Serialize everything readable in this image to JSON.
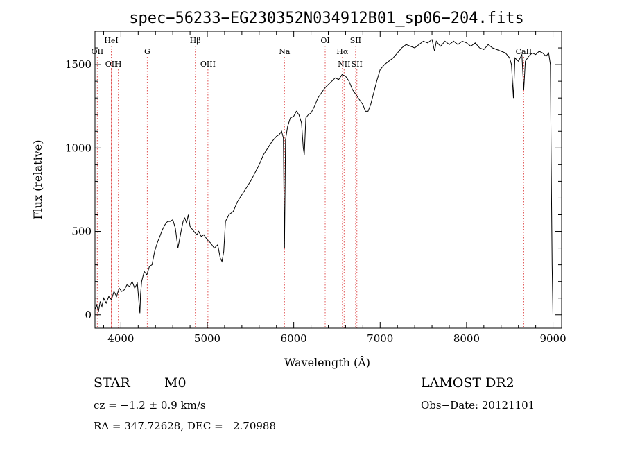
{
  "info": {
    "obj_class": "STAR",
    "subclass": "M0",
    "survey": "LAMOST DR2",
    "redshift": "cz = −1.2 ± 0.9 km/s",
    "obs_date": "Obs−Date: 20121101",
    "coords": "RA = 347.72628, DEC =   2.70988"
  },
  "chart_data": {
    "type": "line",
    "title": "spec−56233−EG230352N034912B01_sp06−204.fits",
    "xlabel": "Wavelength (Å)",
    "ylabel": "Flux (relative)",
    "xlim": [
      3700,
      9100
    ],
    "ylim": [
      -80,
      1700
    ],
    "x_ticks": [
      4000,
      5000,
      6000,
      7000,
      8000,
      9000
    ],
    "y_ticks": [
      0,
      500,
      1000,
      1500
    ],
    "x_minor_step": 200,
    "y_minor_step": 100,
    "line_color": "#000000",
    "marker_color": "#e05050",
    "spectral_lines": [
      {
        "label": "OII",
        "wave": 3727,
        "row": 2
      },
      {
        "label": "HeI",
        "wave": 3889,
        "row": 1
      },
      {
        "label": "OII",
        "wave": 3889,
        "row": 3
      },
      {
        "label": "H",
        "wave": 3970,
        "row": 3
      },
      {
        "label": "G",
        "wave": 4305,
        "row": 2
      },
      {
        "label": "Hβ",
        "wave": 4861,
        "row": 1
      },
      {
        "label": "OIII",
        "wave": 5007,
        "row": 3
      },
      {
        "label": "Na",
        "wave": 5893,
        "row": 2
      },
      {
        "label": "OI",
        "wave": 6364,
        "row": 1
      },
      {
        "label": "Hα",
        "wave": 6563,
        "row": 2
      },
      {
        "label": "NII",
        "wave": 6583,
        "row": 3
      },
      {
        "label": "SII",
        "wave": 6716,
        "row": 1
      },
      {
        "label": "SII",
        "wave": 6731,
        "row": 3
      },
      {
        "label": "CaII",
        "wave": 8662,
        "row": 2
      }
    ],
    "series": [
      {
        "x": [
          3700,
          3720,
          3740,
          3760,
          3780,
          3800,
          3830,
          3860,
          3890,
          3920,
          3950,
          3980,
          4010,
          4040,
          4070,
          4100,
          4130,
          4160,
          4190,
          4220,
          4227,
          4240,
          4270,
          4300,
          4330,
          4360,
          4390,
          4420,
          4450,
          4480,
          4510,
          4540,
          4570,
          4600,
          4630,
          4660,
          4700,
          4720,
          4740,
          4760,
          4780,
          4800,
          4830,
          4860,
          4880,
          4900,
          4930,
          4960,
          5000,
          5040,
          5080,
          5120,
          5150,
          5170,
          5190,
          5210,
          5250,
          5300,
          5350,
          5400,
          5450,
          5500,
          5550,
          5600,
          5650,
          5700,
          5750,
          5800,
          5830,
          5860,
          5880,
          5893,
          5905,
          5930,
          5960,
          6000,
          6030,
          6060,
          6090,
          6110,
          6122,
          6140,
          6170,
          6200,
          6240,
          6280,
          6320,
          6360,
          6400,
          6440,
          6480,
          6520,
          6560,
          6600,
          6640,
          6680,
          6720,
          6760,
          6800,
          6830,
          6860,
          6890,
          6920,
          6960,
          7000,
          7050,
          7100,
          7150,
          7200,
          7250,
          7300,
          7350,
          7400,
          7450,
          7500,
          7550,
          7600,
          7630,
          7650,
          7680,
          7700,
          7750,
          7800,
          7850,
          7900,
          7950,
          8000,
          8050,
          8100,
          8150,
          8200,
          8250,
          8300,
          8350,
          8400,
          8450,
          8498,
          8520,
          8542,
          8560,
          8600,
          8640,
          8662,
          8680,
          8720,
          8760,
          8800,
          8840,
          8880,
          8920,
          8950,
          8970,
          8980,
          8990,
          9000
        ],
        "y": [
          30,
          60,
          20,
          80,
          50,
          100,
          70,
          110,
          90,
          140,
          110,
          160,
          140,
          150,
          180,
          170,
          200,
          160,
          190,
          10,
          120,
          200,
          260,
          240,
          290,
          300,
          380,
          430,
          470,
          510,
          540,
          560,
          560,
          570,
          520,
          400,
          510,
          560,
          580,
          550,
          600,
          530,
          510,
          490,
          480,
          500,
          470,
          480,
          450,
          430,
          400,
          420,
          340,
          320,
          380,
          560,
          600,
          620,
          680,
          720,
          760,
          800,
          850,
          900,
          960,
          1000,
          1040,
          1070,
          1080,
          1100,
          1060,
          400,
          1050,
          1130,
          1180,
          1190,
          1220,
          1200,
          1150,
          1000,
          960,
          1180,
          1200,
          1210,
          1250,
          1300,
          1330,
          1360,
          1380,
          1400,
          1420,
          1410,
          1440,
          1430,
          1400,
          1350,
          1320,
          1290,
          1260,
          1220,
          1220,
          1260,
          1320,
          1400,
          1470,
          1500,
          1520,
          1540,
          1570,
          1600,
          1620,
          1610,
          1600,
          1620,
          1640,
          1630,
          1650,
          1580,
          1640,
          1620,
          1610,
          1640,
          1620,
          1640,
          1620,
          1640,
          1630,
          1610,
          1630,
          1600,
          1590,
          1620,
          1600,
          1590,
          1580,
          1570,
          1540,
          1500,
          1300,
          1540,
          1520,
          1560,
          1350,
          1520,
          1550,
          1570,
          1560,
          1580,
          1570,
          1550,
          1570,
          1500,
          900,
          300,
          0
        ]
      }
    ]
  }
}
